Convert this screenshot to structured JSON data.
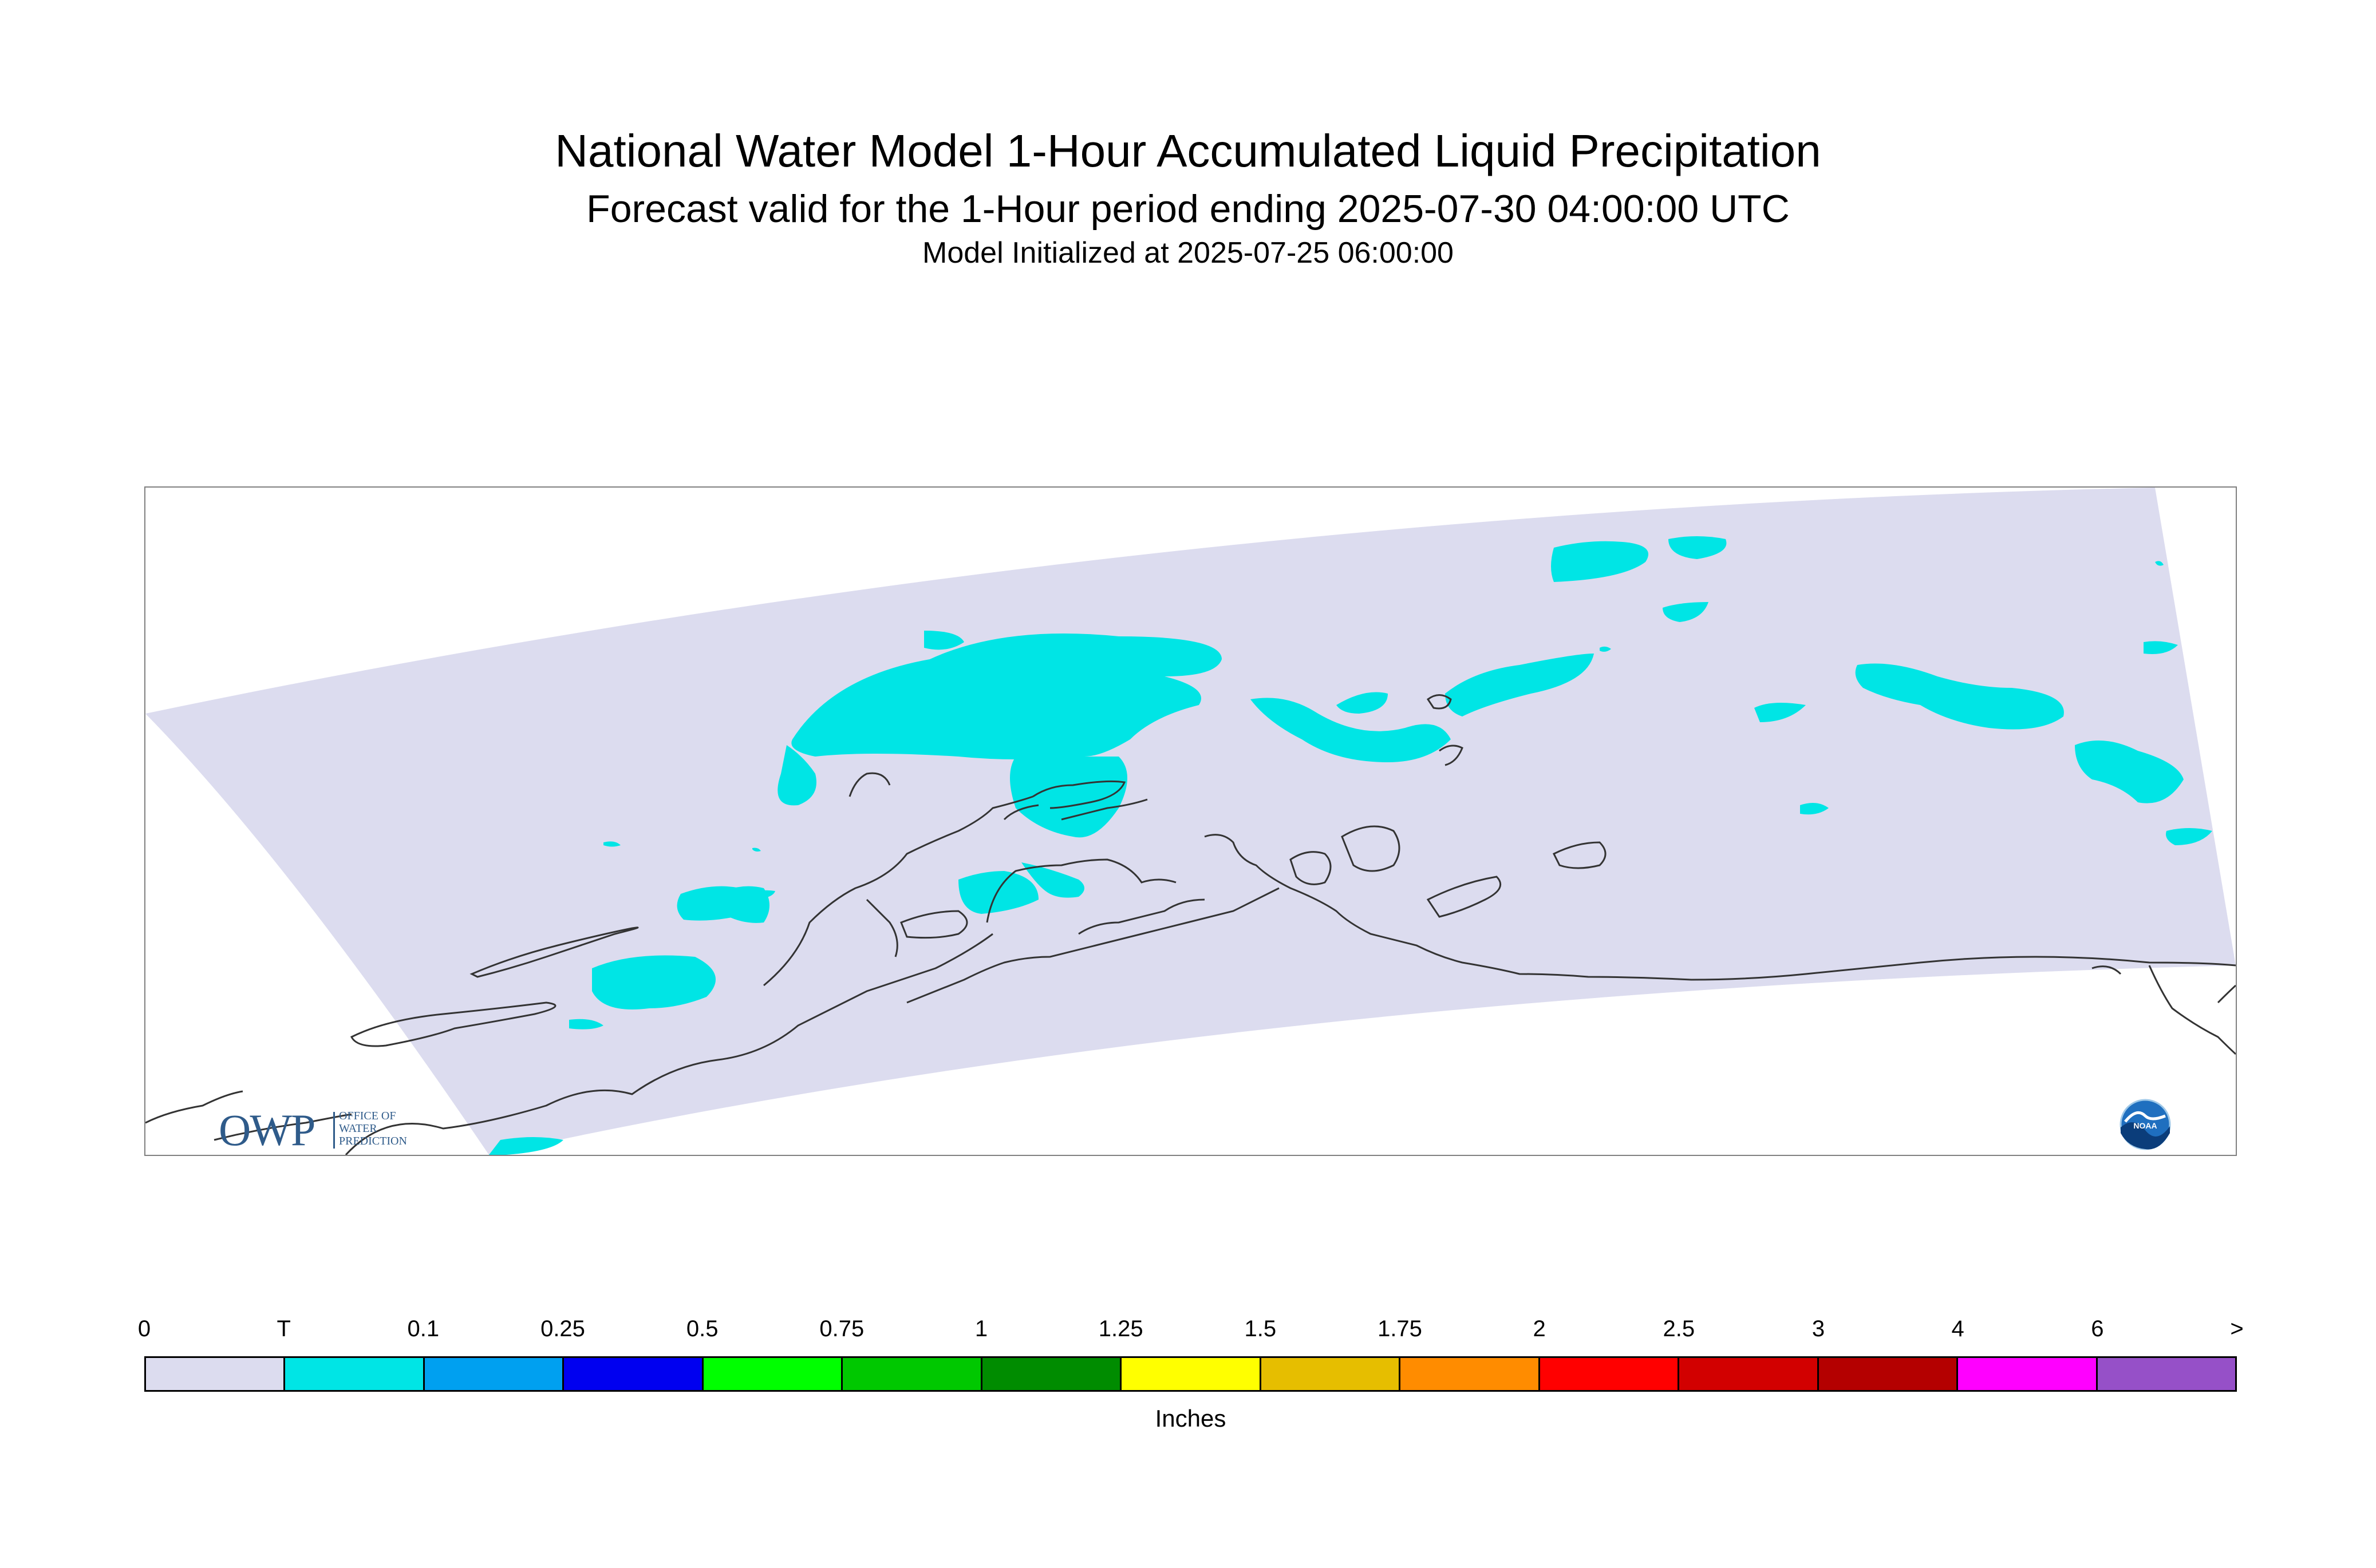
{
  "title": "National Water Model 1-Hour Accumulated Liquid Precipitation",
  "subtitle": "Forecast valid for the 1-Hour period ending 2025-07-30 04:00:00 UTC",
  "initialized": "Model Initialized at 2025-07-25 06:00:00",
  "logos": {
    "owp_mark": "OWP",
    "owp_line1": "OFFICE OF",
    "owp_line2": "WATER",
    "owp_line3": "PREDICTION",
    "noaa": "NOAA"
  },
  "map": {
    "region": "Alaska",
    "domain_color": "#dcdcef",
    "precip_color": "#00e5e5",
    "coastline_color": "#333333"
  },
  "legend": {
    "units": "Inches",
    "ticks": [
      "0",
      "T",
      "0.1",
      "0.25",
      "0.5",
      "0.75",
      "1",
      "1.25",
      "1.5",
      "1.75",
      "2",
      "2.5",
      "3",
      "4",
      "6",
      ">"
    ],
    "colors": [
      "#dcdcef",
      "#00e5e5",
      "#00a0f0",
      "#0000f0",
      "#00ff00",
      "#00c800",
      "#008c00",
      "#ffff00",
      "#e6be00",
      "#ff8c00",
      "#ff0000",
      "#d20000",
      "#b40000",
      "#ff00ff",
      "#9650c8"
    ]
  }
}
